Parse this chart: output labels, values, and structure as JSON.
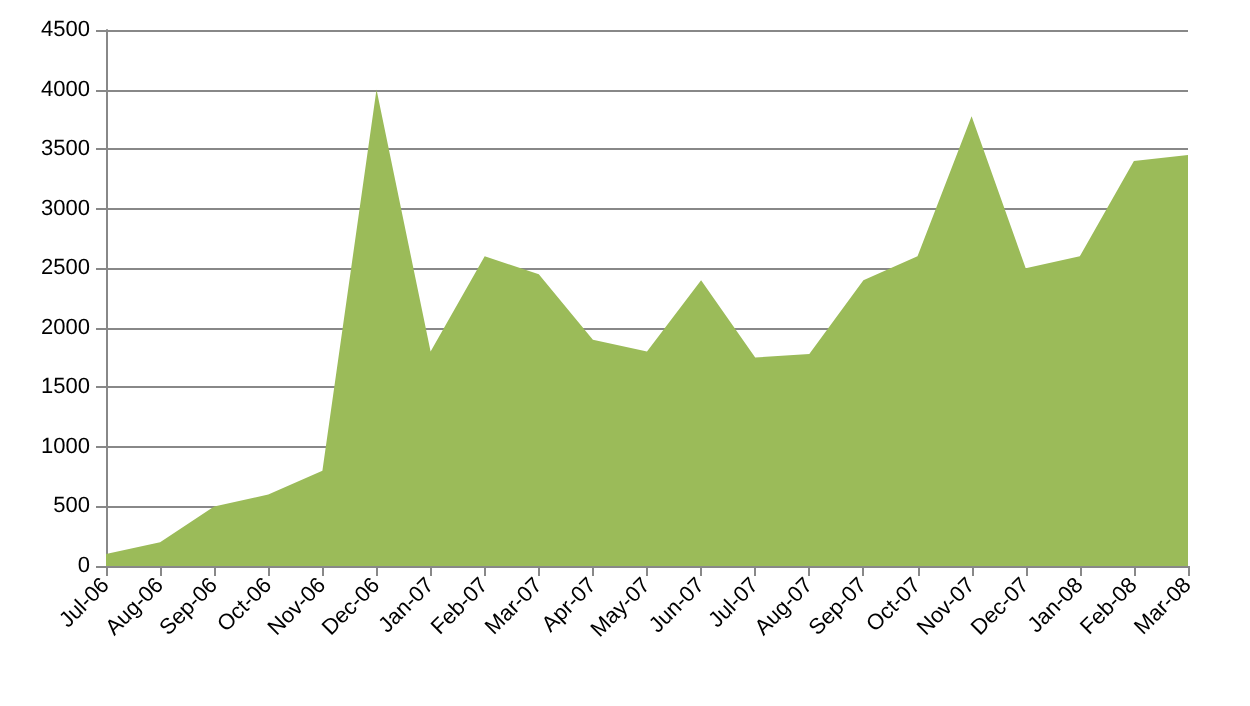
{
  "chart_data": {
    "type": "area",
    "categories": [
      "Jul-06",
      "Aug-06",
      "Sep-06",
      "Oct-06",
      "Nov-06",
      "Dec-06",
      "Jan-07",
      "Feb-07",
      "Mar-07",
      "Apr-07",
      "May-07",
      "Jun-07",
      "Jul-07",
      "Aug-07",
      "Sep-07",
      "Oct-07",
      "Nov-07",
      "Dec-07",
      "Jan-08",
      "Feb-08",
      "Mar-08"
    ],
    "values": [
      100,
      200,
      500,
      600,
      800,
      4000,
      1800,
      2600,
      2450,
      1900,
      1800,
      2400,
      1750,
      1780,
      2400,
      2600,
      3775,
      2500,
      2600,
      3400,
      3450
    ],
    "color": "#9bbb59",
    "ylim": [
      0,
      4500
    ],
    "yticks": [
      0,
      500,
      1000,
      1500,
      2000,
      2500,
      3000,
      3500,
      4000,
      4500
    ],
    "grid": "y"
  }
}
